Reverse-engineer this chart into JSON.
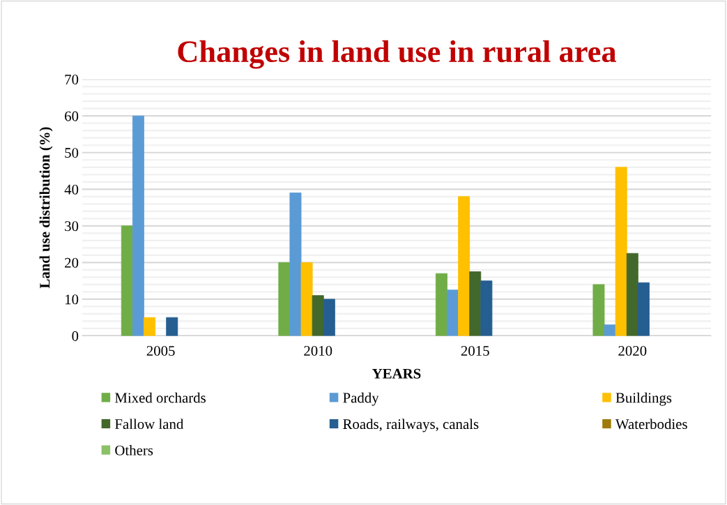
{
  "chart_data": {
    "type": "bar",
    "title": "Changes in land use in rural area",
    "xlabel": "YEARS",
    "ylabel": "Land use distribution (%)",
    "categories": [
      "2005",
      "2010",
      "2015",
      "2020"
    ],
    "series": [
      {
        "name": "Mixed orchards",
        "color": "#70ad47",
        "values": [
          30,
          20,
          17,
          14
        ]
      },
      {
        "name": "Paddy",
        "color": "#5b9bd5",
        "values": [
          60,
          39,
          12.5,
          3
        ]
      },
      {
        "name": "Buildings",
        "color": "#ffc000",
        "values": [
          5,
          20,
          38,
          46
        ]
      },
      {
        "name": "Fallow land",
        "color": "#43682b",
        "values": [
          null,
          11,
          17.5,
          22.5
        ]
      },
      {
        "name": "Roads, railways, canals",
        "color": "#255e91",
        "values": [
          5,
          10,
          15,
          14.5
        ]
      },
      {
        "name": "Waterbodies",
        "color": "#9e7c0c",
        "values": [
          null,
          null,
          null,
          null
        ]
      },
      {
        "name": "Others",
        "color": "#8cc168",
        "values": [
          null,
          null,
          null,
          null
        ]
      }
    ],
    "ylim": [
      0,
      70
    ],
    "yticks": [
      0,
      10,
      20,
      30,
      40,
      50,
      60,
      70
    ],
    "grid": "y",
    "legend": "bottom"
  }
}
